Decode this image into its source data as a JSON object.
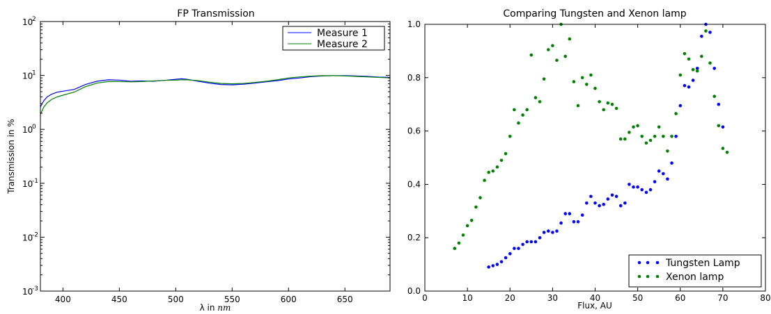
{
  "chart_data": [
    {
      "type": "line",
      "title": "FP Transmission",
      "xlabel_prefix": "λ in ",
      "xlabel_unit": "nm",
      "ylabel": "Transmission in %",
      "xlim": [
        380,
        690
      ],
      "ylim": [
        0.001,
        100
      ],
      "yscale": "log",
      "grid": false,
      "legend_position": "upper right",
      "x_ticks": [
        "400",
        "450",
        "500",
        "550",
        "600",
        "650"
      ],
      "y_ticks": [
        {
          "base": "10",
          "exp": "-3"
        },
        {
          "base": "10",
          "exp": "-2"
        },
        {
          "base": "10",
          "exp": "-1"
        },
        {
          "base": "10",
          "exp": "0"
        },
        {
          "base": "10",
          "exp": "1"
        },
        {
          "base": "10",
          "exp": "2"
        }
      ],
      "series": [
        {
          "name": "Measure 1",
          "color": "#0000ff",
          "x": [
            380,
            383,
            386,
            390,
            395,
            400,
            410,
            420,
            430,
            440,
            450,
            460,
            470,
            480,
            490,
            500,
            505,
            510,
            520,
            530,
            540,
            550,
            560,
            570,
            580,
            590,
            600,
            610,
            620,
            630,
            640,
            650,
            660,
            670,
            680,
            690
          ],
          "y": [
            2.6,
            3.4,
            4.0,
            4.5,
            4.9,
            5.1,
            5.5,
            6.8,
            7.8,
            8.3,
            8.2,
            7.8,
            7.9,
            7.8,
            8.1,
            8.5,
            8.7,
            8.5,
            7.8,
            7.2,
            6.8,
            6.7,
            6.9,
            7.2,
            7.6,
            8.0,
            8.6,
            9.0,
            9.5,
            9.8,
            9.9,
            9.9,
            9.8,
            9.6,
            9.3,
            9.2
          ]
        },
        {
          "name": "Measure 2",
          "color": "#008000",
          "x": [
            380,
            383,
            386,
            390,
            395,
            400,
            410,
            420,
            430,
            440,
            450,
            460,
            470,
            480,
            490,
            500,
            505,
            510,
            520,
            530,
            540,
            550,
            560,
            570,
            580,
            590,
            600,
            610,
            620,
            630,
            640,
            650,
            660,
            670,
            680,
            690
          ],
          "y": [
            1.9,
            2.6,
            3.1,
            3.6,
            4.0,
            4.3,
            4.9,
            6.2,
            7.2,
            7.7,
            7.7,
            7.6,
            7.7,
            7.9,
            8.1,
            8.2,
            8.3,
            8.3,
            8.0,
            7.5,
            7.1,
            7.0,
            7.1,
            7.4,
            7.8,
            8.3,
            9.0,
            9.4,
            9.7,
            9.9,
            9.9,
            9.8,
            9.6,
            9.4,
            9.2,
            9.0
          ]
        }
      ]
    },
    {
      "type": "scatter",
      "title": "Comparing Tungsten and Xenon lamp",
      "xlabel": "Flux, AU",
      "ylabel": "",
      "xlim": [
        0,
        80
      ],
      "ylim": [
        0.0,
        1.0
      ],
      "grid": false,
      "legend_position": "lower right",
      "x_ticks": [
        "0",
        "10",
        "20",
        "30",
        "40",
        "50",
        "60",
        "70",
        "80"
      ],
      "y_ticks": [
        "0.0",
        "0.2",
        "0.4",
        "0.6",
        "0.8",
        "1.0"
      ],
      "series": [
        {
          "name": "Tungsten Lamp",
          "color": "#0000ff",
          "x": [
            15,
            16,
            17,
            18,
            19,
            20,
            21,
            22,
            23,
            24,
            25,
            26,
            27,
            28,
            29,
            30,
            31,
            32,
            33,
            34,
            35,
            36,
            37,
            38,
            39,
            40,
            41,
            42,
            43,
            44,
            45,
            46,
            47,
            48,
            49,
            50,
            51,
            52,
            53,
            54,
            55,
            56,
            57,
            58,
            59,
            60,
            61,
            62,
            63,
            64,
            65,
            66,
            67,
            68,
            69,
            70
          ],
          "y": [
            0.09,
            0.095,
            0.1,
            0.11,
            0.125,
            0.14,
            0.16,
            0.16,
            0.175,
            0.185,
            0.185,
            0.185,
            0.2,
            0.22,
            0.225,
            0.22,
            0.225,
            0.255,
            0.29,
            0.29,
            0.26,
            0.26,
            0.285,
            0.33,
            0.355,
            0.33,
            0.32,
            0.325,
            0.345,
            0.36,
            0.355,
            0.32,
            0.33,
            0.4,
            0.39,
            0.39,
            0.38,
            0.37,
            0.38,
            0.41,
            0.45,
            0.44,
            0.42,
            0.48,
            0.58,
            0.695,
            0.77,
            0.765,
            0.79,
            0.835,
            0.955,
            1.0,
            0.97,
            0.835,
            0.7,
            0.615
          ]
        },
        {
          "name": "Xenon lamp",
          "color": "#008000",
          "x": [
            7,
            8,
            9,
            10,
            11,
            12,
            13,
            14,
            15,
            16,
            17,
            18,
            19,
            20,
            21,
            22,
            23,
            24,
            25,
            26,
            27,
            28,
            29,
            30,
            31,
            32,
            33,
            34,
            35,
            36,
            37,
            38,
            39,
            40,
            41,
            42,
            43,
            44,
            45,
            46,
            47,
            48,
            49,
            50,
            51,
            52,
            53,
            54,
            55,
            56,
            57,
            58,
            59,
            60,
            61,
            62,
            63,
            64,
            65,
            66,
            67,
            68,
            69,
            70,
            71
          ],
          "y": [
            0.16,
            0.18,
            0.21,
            0.245,
            0.265,
            0.315,
            0.35,
            0.415,
            0.445,
            0.45,
            0.465,
            0.49,
            0.515,
            0.58,
            0.68,
            0.63,
            0.66,
            0.68,
            0.885,
            0.725,
            0.71,
            0.795,
            0.905,
            0.92,
            0.865,
            1.0,
            0.88,
            0.945,
            0.785,
            0.695,
            0.8,
            0.775,
            0.81,
            0.76,
            0.71,
            0.68,
            0.705,
            0.7,
            0.685,
            0.57,
            0.57,
            0.595,
            0.615,
            0.62,
            0.58,
            0.555,
            0.565,
            0.58,
            0.615,
            0.58,
            0.525,
            0.58,
            0.665,
            0.81,
            0.89,
            0.87,
            0.83,
            0.825,
            0.88,
            0.975,
            0.855,
            0.73,
            0.62,
            0.535,
            0.52
          ]
        }
      ]
    }
  ]
}
